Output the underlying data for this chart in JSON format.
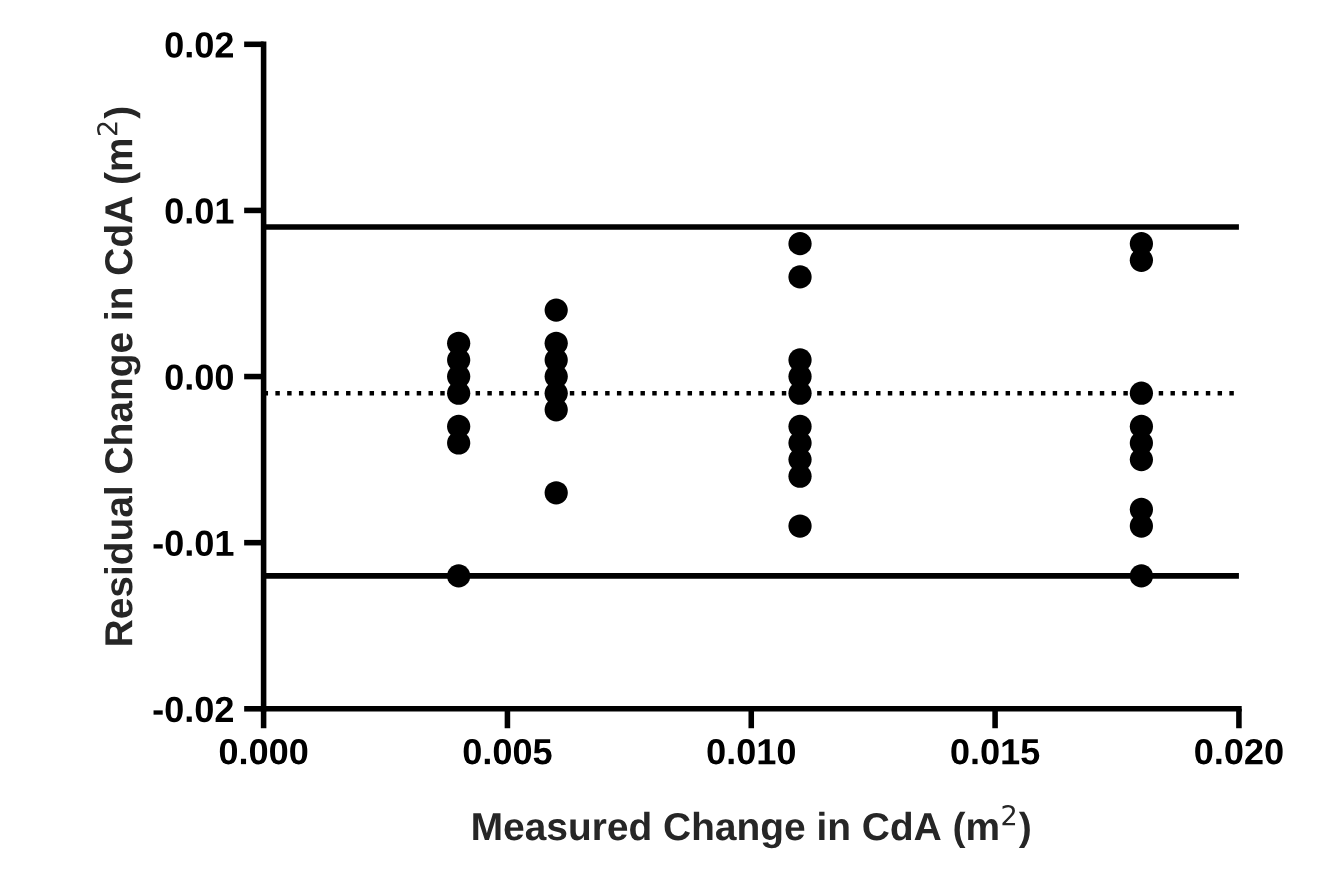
{
  "chart_data": {
    "type": "scatter",
    "xlabel": "Measured Change in CdA (m$^{2}$)",
    "ylabel": "Residual Change in CdA (m$^{2}$)",
    "series": [
      {
        "color": "#000000",
        "x": [
          0.004,
          0.004,
          0.004,
          0.004,
          0.004,
          0.004,
          0.004,
          0.006,
          0.006,
          0.006,
          0.006,
          0.006,
          0.006,
          0.006,
          0.011,
          0.011,
          0.011,
          0.011,
          0.011,
          0.011,
          0.011,
          0.011,
          0.011,
          0.011,
          0.018,
          0.018,
          0.018,
          0.018,
          0.018,
          0.018,
          0.018,
          0.018,
          0.018
        ],
        "values": [
          0.002,
          0.001,
          0.0,
          -0.001,
          -0.003,
          -0.004,
          -0.012,
          0.004,
          0.002,
          0.001,
          0.0,
          -0.001,
          -0.002,
          -0.007,
          0.008,
          0.006,
          0.001,
          0.0,
          -0.001,
          -0.003,
          -0.004,
          -0.005,
          -0.006,
          -0.009,
          0.008,
          0.007,
          -0.001,
          -0.003,
          -0.004,
          -0.005,
          -0.008,
          -0.009,
          -0.012
        ]
      }
    ],
    "marker": "circle",
    "xlim": [
      0.0,
      0.02
    ],
    "xticks": [
      {
        "value": 0.0,
        "label": "0.000"
      },
      {
        "value": 0.005,
        "label": "0.005"
      },
      {
        "value": 0.01,
        "label": "0.010"
      },
      {
        "value": 0.015,
        "label": "0.015"
      },
      {
        "value": 0.02,
        "label": "0.020"
      }
    ],
    "ylim": [
      -0.02,
      0.02
    ],
    "yticks": [
      {
        "value": -0.02,
        "label": "-0.02"
      },
      {
        "value": -0.01,
        "label": "-0.01"
      },
      {
        "value": 0.0,
        "label": "0.00"
      },
      {
        "value": 0.01,
        "label": "0.01"
      },
      {
        "value": 0.02,
        "label": "0.02"
      }
    ],
    "ref_lines": [
      {
        "axis": "y",
        "value": 0.009,
        "color": "#000000",
        "line_style": "solid"
      },
      {
        "axis": "y",
        "value": -0.001,
        "color": "#000000",
        "line_style": "dotted"
      },
      {
        "axis": "y",
        "value": -0.012,
        "color": "#000000",
        "line_style": "solid"
      }
    ],
    "grid": false,
    "legend": false
  }
}
